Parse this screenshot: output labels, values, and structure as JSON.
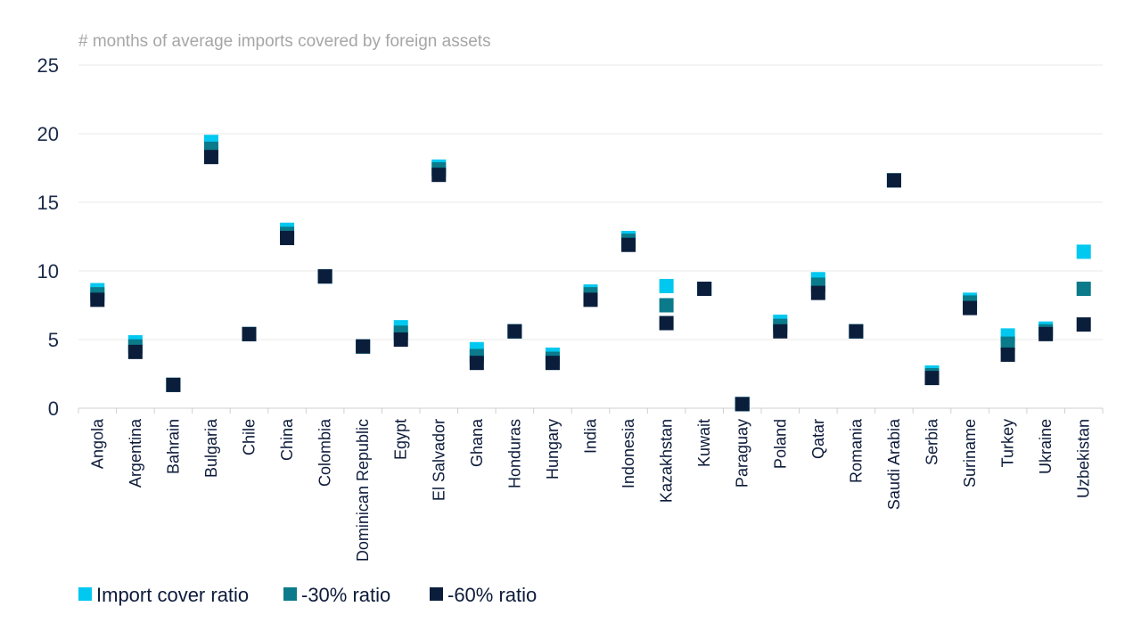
{
  "chart_data": {
    "type": "scatter",
    "title": "# months of average imports covered by foreign assets",
    "xlabel": "",
    "ylabel": "",
    "ylim": [
      0,
      25
    ],
    "yticks": [
      0,
      5,
      10,
      15,
      20,
      25
    ],
    "grid": true,
    "legend_position": "bottom-left",
    "categories": [
      "Angola",
      "Argentina",
      "Bahrain",
      "Bulgaria",
      "Chile",
      "China",
      "Colombia",
      "Dominican Republic",
      "Egypt",
      "El Salvador",
      "Ghana",
      "Honduras",
      "Hungary",
      "India",
      "Indonesia",
      "Kazakhstan",
      "Kuwait",
      "Paraguay",
      "Poland",
      "Qatar",
      "Romania",
      "Saudi Arabia",
      "Serbia",
      "Suriname",
      "Turkey",
      "Ukraine",
      "Uzbekistan"
    ],
    "series": [
      {
        "name": "Import cover ratio",
        "color": "#00c8f0",
        "values": [
          8.6,
          4.8,
          1.7,
          19.4,
          5.4,
          13.0,
          9.6,
          4.5,
          5.9,
          17.6,
          4.3,
          5.6,
          3.9,
          8.5,
          12.4,
          8.9,
          8.7,
          0.3,
          6.3,
          9.4,
          5.6,
          16.6,
          2.6,
          7.9,
          5.3,
          5.8,
          11.4
        ]
      },
      {
        "name": "-30% ratio",
        "color": "#0b7a8a",
        "values": [
          8.3,
          4.5,
          1.7,
          18.9,
          5.4,
          12.7,
          9.6,
          4.5,
          5.5,
          17.4,
          3.8,
          5.6,
          3.6,
          8.3,
          12.2,
          7.5,
          8.7,
          0.3,
          6.0,
          9.0,
          5.6,
          16.6,
          2.4,
          7.7,
          4.7,
          5.6,
          8.7
        ]
      },
      {
        "name": "-60% ratio",
        "color": "#0a1e3c",
        "values": [
          7.9,
          4.1,
          1.7,
          18.3,
          5.4,
          12.4,
          9.6,
          4.5,
          5.0,
          17.0,
          3.3,
          5.6,
          3.3,
          7.9,
          11.9,
          6.2,
          8.7,
          0.3,
          5.6,
          8.4,
          5.6,
          16.6,
          2.2,
          7.3,
          3.9,
          5.4,
          6.1
        ]
      }
    ]
  }
}
